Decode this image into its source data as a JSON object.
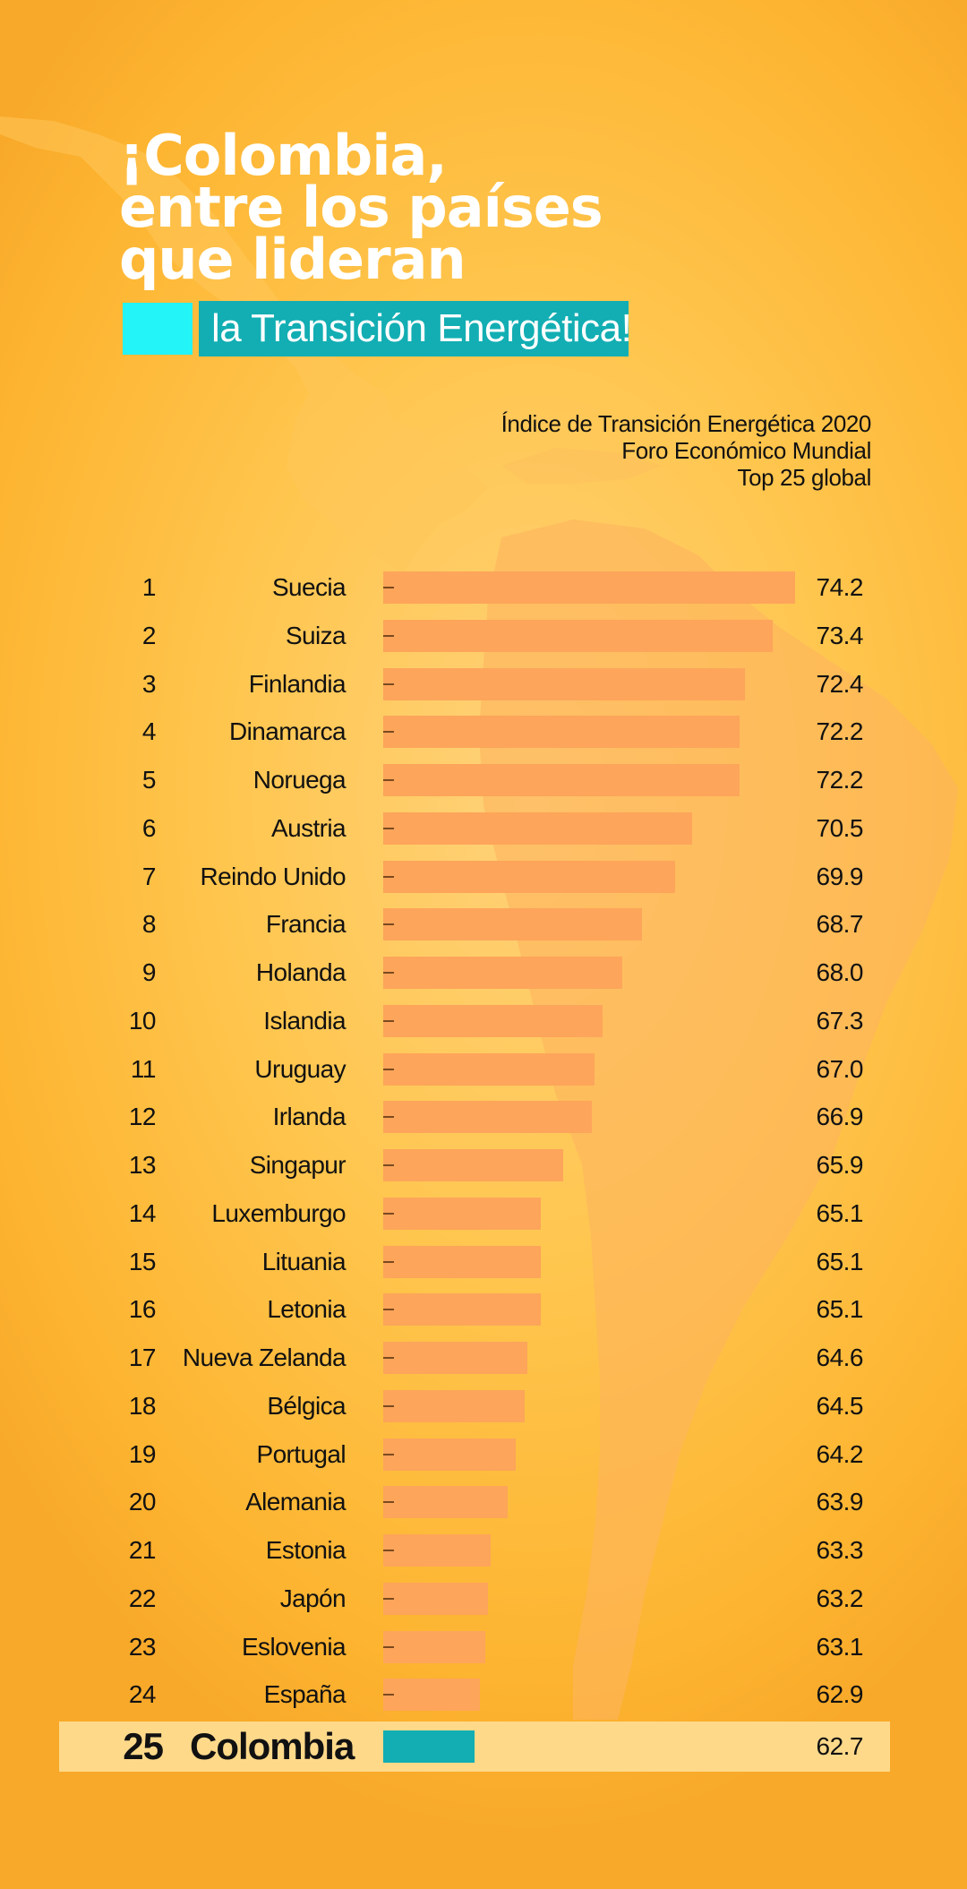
{
  "header": {
    "title_lines": [
      "¡Colombia,",
      "entre los países",
      "que lideran"
    ],
    "subtitle": "la Transición Energética!"
  },
  "source": {
    "lines": [
      "Índice de Transición Energética 2020",
      "Foro Económico Mundial",
      "Top 25 global"
    ]
  },
  "colors": {
    "background": "#ffc64f",
    "bar": "#fda55a",
    "highlight_bar": "#12aeb3",
    "highlight_band": "#ffd98a",
    "accent_square": "#22f4f8",
    "text": "#111111"
  },
  "chart_data": {
    "type": "bar",
    "orientation": "horizontal",
    "title": "",
    "xlabel": "",
    "ylabel": "",
    "highlight": "Colombia",
    "grid": false,
    "legend": "none",
    "ranks": [
      "1",
      "2",
      "3",
      "4",
      "5",
      "6",
      "7",
      "8",
      "9",
      "10",
      "11",
      "12",
      "13",
      "14",
      "15",
      "16",
      "17",
      "18",
      "19",
      "20",
      "21",
      "22",
      "23",
      "24",
      "25"
    ],
    "categories": [
      "Suecia",
      "Suiza",
      "Finlandia",
      "Dinamarca",
      "Noruega",
      "Austria",
      "Reindo Unido",
      "Francia",
      "Holanda",
      "Islandia",
      "Uruguay",
      "Irlanda",
      "Singapur",
      "Luxemburgo",
      "Lituania",
      "Letonia",
      "Nueva Zelanda",
      "Bélgica",
      "Portugal",
      "Alemania",
      "Estonia",
      "Japón",
      "Eslovenia",
      "España",
      "Colombia"
    ],
    "values": [
      74.2,
      73.4,
      72.4,
      72.2,
      72.2,
      70.5,
      69.9,
      68.7,
      68.0,
      67.3,
      67.0,
      66.9,
      65.9,
      65.1,
      65.1,
      65.1,
      64.6,
      64.5,
      64.2,
      63.9,
      63.3,
      63.2,
      63.1,
      62.9,
      62.7
    ],
    "value_labels": [
      "74.2",
      "73.4",
      "72.4",
      "72.2",
      "72.2",
      "70.5",
      "69.9",
      "68.7",
      "68.0",
      "67.3",
      "67.0",
      "66.9",
      "65.9",
      "65.1",
      "65.1",
      "65.1",
      "64.6",
      "64.5",
      "64.2",
      "63.9",
      "63.3",
      "63.2",
      "63.1",
      "62.9",
      "62.7"
    ],
    "xlim": [
      60,
      74.2
    ]
  }
}
